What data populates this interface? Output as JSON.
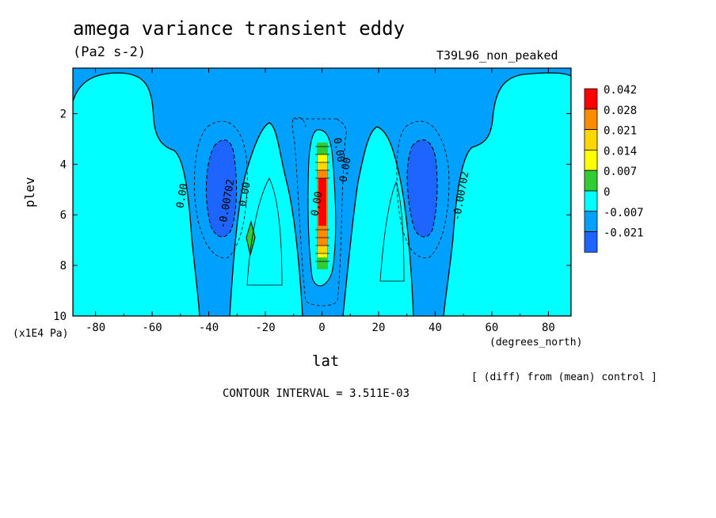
{
  "chart_data": {
    "type": "contour",
    "title": "amega variance transient eddy",
    "units": "(Pa2 s-2)",
    "run_label": "T39L96_non_peaked",
    "xlabel": "lat",
    "x_unit": "(degrees_north)",
    "ylabel": "plev",
    "y_unit": "(x1E4 Pa)",
    "x_ticks": [
      "-80",
      "-60",
      "-40",
      "-20",
      "0",
      "20",
      "40",
      "60",
      "80"
    ],
    "x_tick_values": [
      -80,
      -60,
      -40,
      -20,
      0,
      20,
      40,
      60,
      80
    ],
    "y_ticks": [
      "2",
      "4",
      "6",
      "8",
      "10"
    ],
    "y_tick_values": [
      2,
      4,
      6,
      8,
      10
    ],
    "xlim": [
      -88,
      88
    ],
    "ylim": [
      10,
      0.2
    ],
    "colorbar": {
      "labels": [
        "0.042",
        "0.028",
        "0.021",
        "0.014",
        "0.007",
        "0",
        "-0.007",
        "-0.021"
      ],
      "colors": [
        "#ff0000",
        "#ff8c00",
        "#ffd700",
        "#ffff00",
        "#32cd32",
        "#00ffff",
        "#00a0ff",
        "#1e64ff"
      ]
    },
    "contour_labels": [
      "0.00",
      "-0.00702",
      "0.00",
      "0.00",
      "0.00",
      "-0.00702",
      "0.00"
    ],
    "footer_note": "[ (diff) from (mean) control ]",
    "contour_interval": "CONTOUR INTERVAL = 3.511E-03"
  }
}
